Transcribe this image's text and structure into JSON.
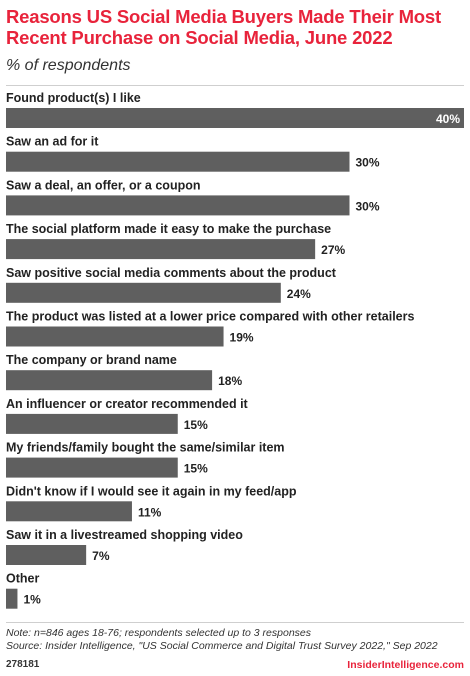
{
  "header": {
    "title": "Reasons US Social Media Buyers Made Their Most Recent Purchase on Social Media, June 2022",
    "subtitle": "% of respondents"
  },
  "chart_data": {
    "type": "bar",
    "orientation": "horizontal",
    "categories": [
      "Found product(s) I like",
      "Saw an ad for it",
      "Saw a deal, an offer, or a coupon",
      "The social platform made it easy to make the purchase",
      "Saw positive social media comments about the product",
      "The product was listed at a lower price compared with other retailers",
      "The company or brand name",
      "An influencer or creator recommended it",
      "My friends/family bought the same/similar item",
      "Didn't know if I would see it again in my feed/app",
      "Saw it in a livestreamed shopping video",
      "Other"
    ],
    "values": [
      40,
      30,
      30,
      27,
      24,
      19,
      18,
      15,
      15,
      11,
      7,
      1
    ],
    "value_labels": [
      "40%",
      "30%",
      "30%",
      "27%",
      "24%",
      "19%",
      "18%",
      "15%",
      "15%",
      "11%",
      "7%",
      "1%"
    ],
    "xlim": [
      0,
      40
    ],
    "bar_color": "#5f5f5f",
    "grid": false,
    "legend": "none"
  },
  "footer": {
    "note": "Note: n=846 ages 18-76; respondents selected up to 3 responses",
    "source": "Source: Insider Intelligence, \"US Social Commerce and Digital Trust Survey 2022,\" Sep 2022",
    "chart_id": "278181",
    "brand": "InsiderIntelligence.com"
  },
  "colors": {
    "accent": "#e8233b",
    "text": "#222222"
  }
}
